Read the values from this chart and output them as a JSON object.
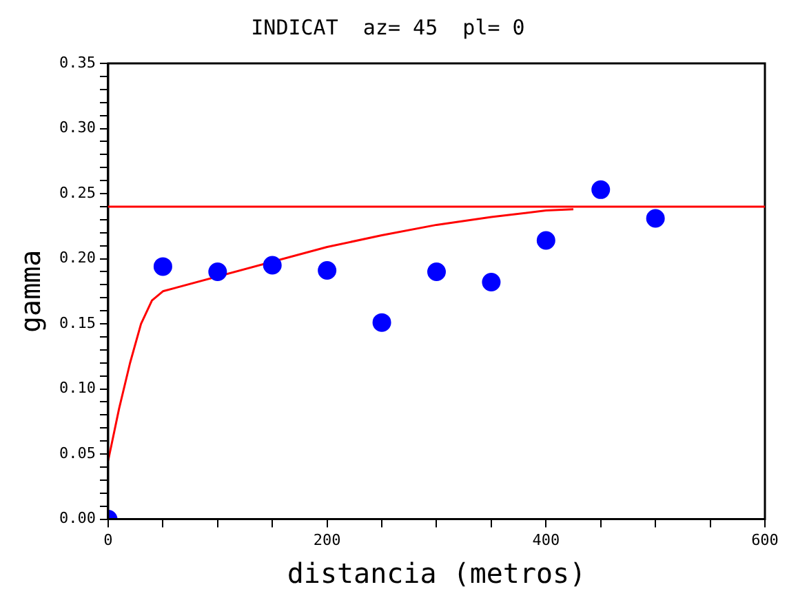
{
  "chart_data": {
    "type": "scatter",
    "title": "INDICAT  az= 45  pl= 0",
    "xlabel": "distancia (metros)",
    "ylabel": "gamma",
    "series": [
      {
        "type": "scatter",
        "color": "#0000ff",
        "marker": "circle",
        "x": [
          0,
          50,
          100,
          150,
          200,
          250,
          300,
          350,
          400,
          450,
          500
        ],
        "values": [
          0,
          0.194,
          0.19,
          0.195,
          0.191,
          0.151,
          0.19,
          0.182,
          0.214,
          0.253,
          0.231
        ]
      },
      {
        "type": "line",
        "color": "#ff0000",
        "marker": "none",
        "x": [
          0,
          10,
          20,
          30,
          40,
          50,
          200,
          250,
          300,
          350,
          400,
          425
        ],
        "values": [
          0.045,
          0.085,
          0.12,
          0.15,
          0.168,
          0.175,
          0.209,
          0.218,
          0.226,
          0.232,
          0.237,
          0.238
        ]
      }
    ],
    "ref_lines": [
      {
        "axis": "y",
        "value": 0.24,
        "color": "#ff0000"
      }
    ],
    "xlim": [
      0,
      600
    ],
    "xticks": [
      0,
      {
        "value": 50,
        "label": null
      },
      {
        "value": 100,
        "label": null
      },
      {
        "value": 150,
        "label": null
      },
      200,
      {
        "value": 250,
        "label": null
      },
      {
        "value": 300,
        "label": null
      },
      {
        "value": 350,
        "label": null
      },
      400,
      {
        "value": 450,
        "label": null
      },
      {
        "value": 500,
        "label": null
      },
      {
        "value": 550,
        "label": null
      },
      600
    ],
    "ylim": [
      0,
      0.35
    ],
    "yticks": [
      {
        "value": 0,
        "label": "0.00"
      },
      {
        "value": 0.01,
        "label": null
      },
      {
        "value": 0.02,
        "label": null
      },
      {
        "value": 0.03,
        "label": null
      },
      {
        "value": 0.04,
        "label": null
      },
      {
        "value": 0.05,
        "label": "0.05"
      },
      {
        "value": 0.06,
        "label": null
      },
      {
        "value": 0.07,
        "label": null
      },
      {
        "value": 0.08,
        "label": null
      },
      {
        "value": 0.09,
        "label": null
      },
      {
        "value": 0.1,
        "label": "0.10"
      },
      {
        "value": 0.11,
        "label": null
      },
      {
        "value": 0.12,
        "label": null
      },
      {
        "value": 0.13,
        "label": null
      },
      {
        "value": 0.14,
        "label": null
      },
      {
        "value": 0.15,
        "label": "0.15"
      },
      {
        "value": 0.16,
        "label": null
      },
      {
        "value": 0.17,
        "label": null
      },
      {
        "value": 0.18,
        "label": null
      },
      {
        "value": 0.19,
        "label": null
      },
      {
        "value": 0.2,
        "label": "0.20"
      },
      {
        "value": 0.21,
        "label": null
      },
      {
        "value": 0.22,
        "label": null
      },
      {
        "value": 0.23,
        "label": null
      },
      {
        "value": 0.24,
        "label": null
      },
      {
        "value": 0.25,
        "label": "0.25"
      },
      {
        "value": 0.26,
        "label": null
      },
      {
        "value": 0.27,
        "label": null
      },
      {
        "value": 0.28,
        "label": null
      },
      {
        "value": 0.29,
        "label": null
      },
      {
        "value": 0.3,
        "label": "0.30"
      },
      {
        "value": 0.31,
        "label": null
      },
      {
        "value": 0.32,
        "label": null
      },
      {
        "value": 0.33,
        "label": null
      },
      {
        "value": 0.34,
        "label": null
      },
      {
        "value": 0.35,
        "label": "0.35"
      }
    ],
    "grid": false,
    "legend": false
  }
}
